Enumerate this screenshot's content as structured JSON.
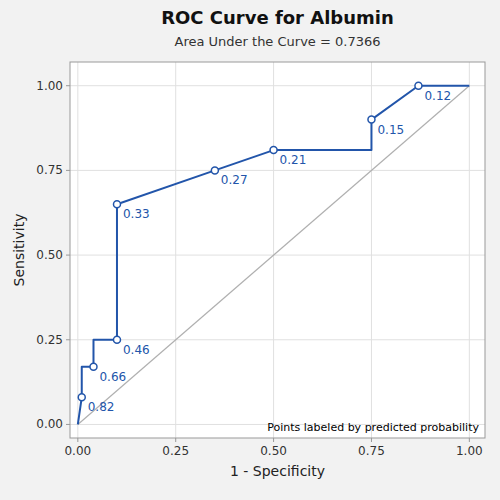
{
  "chart_data": {
    "type": "line",
    "title": "ROC Curve for Albumin",
    "subtitle": "Area Under the Curve = 0.7366",
    "xlabel": "1 - Specificity",
    "ylabel": "Sensitivity",
    "annotation": "Points labeled by predicted probability",
    "series": [
      {
        "type": "line",
        "color": "#b0b0b0",
        "x": [
          0.0,
          1.0
        ],
        "values": [
          0.0,
          1.0
        ]
      },
      {
        "type": "line",
        "color": "#2255aa",
        "x": [
          0.0,
          0.01,
          0.01,
          0.04,
          0.04,
          0.1,
          0.1,
          0.35,
          0.5,
          0.75,
          0.75,
          0.87,
          1.0
        ],
        "values": [
          0.0,
          0.08,
          0.17,
          0.17,
          0.25,
          0.25,
          0.65,
          0.75,
          0.81,
          0.81,
          0.9,
          1.0,
          1.0
        ]
      },
      {
        "type": "scatter",
        "marker": "circle",
        "color": "#2255aa",
        "x": [
          0.01,
          0.04,
          0.1,
          0.1,
          0.35,
          0.5,
          0.75,
          0.87
        ],
        "values": [
          0.08,
          0.17,
          0.25,
          0.65,
          0.75,
          0.81,
          0.9,
          1.0
        ],
        "thresholds": [
          0.82,
          0.66,
          0.46,
          0.33,
          0.27,
          0.21,
          0.15,
          0.12
        ]
      }
    ],
    "xlim": [
      -0.02,
      1.04
    ],
    "ylim": [
      -0.04,
      1.07
    ],
    "xticks": [
      {
        "value": 0,
        "label": "0.00"
      },
      {
        "value": 0.25,
        "label": "0.25"
      },
      {
        "value": 0.5,
        "label": "0.50"
      },
      {
        "value": 0.75,
        "label": "0.75"
      },
      {
        "value": 1,
        "label": "1.00"
      }
    ],
    "yticks": [
      {
        "value": 0,
        "label": "0.00"
      },
      {
        "value": 0.25,
        "label": "0.25"
      },
      {
        "value": 0.5,
        "label": "0.50"
      },
      {
        "value": 0.75,
        "label": "0.75"
      },
      {
        "value": 1,
        "label": "1.00"
      }
    ],
    "grid": true
  }
}
